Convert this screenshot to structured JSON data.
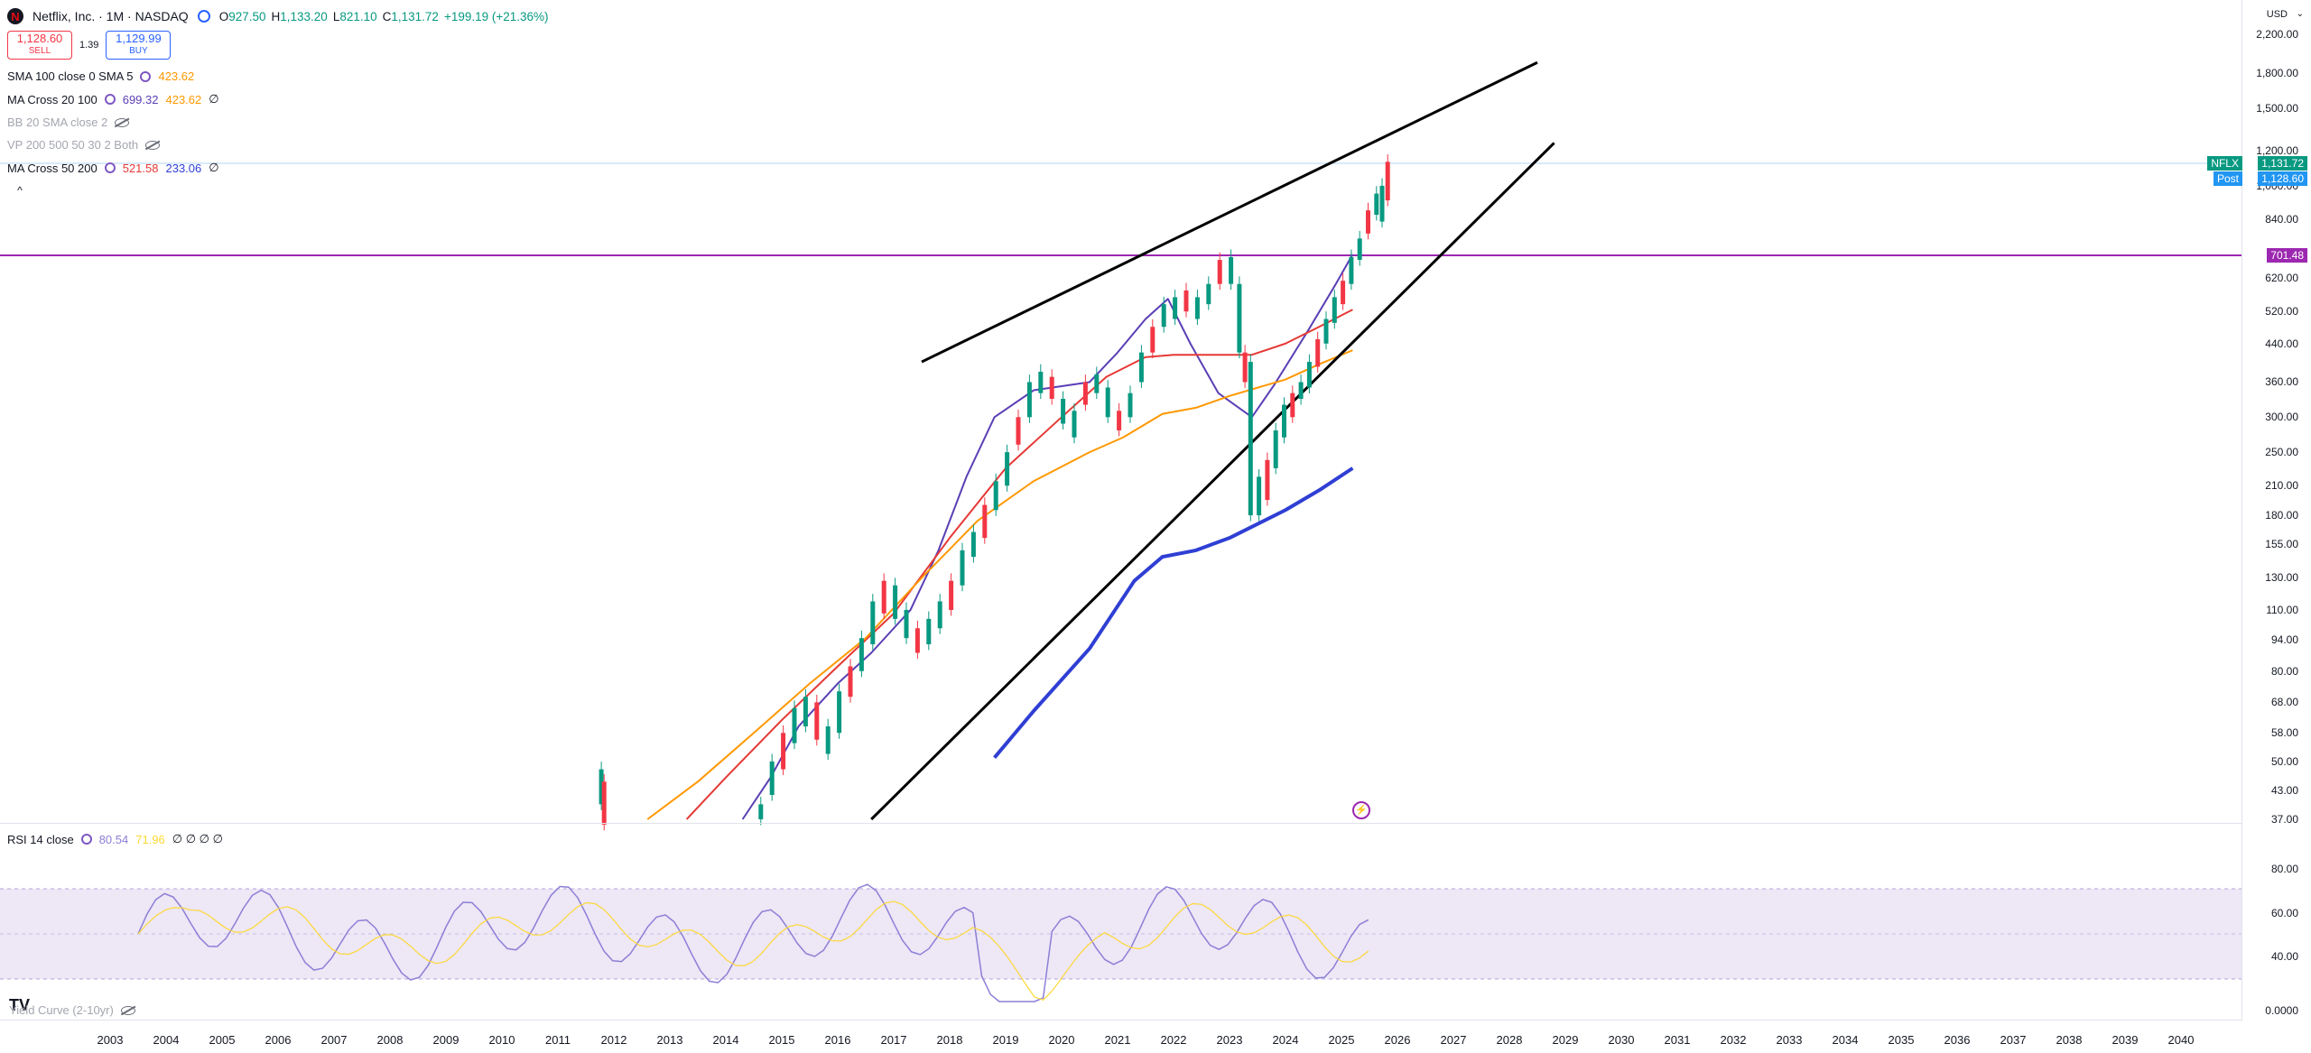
{
  "header": {
    "symbol_title": "Netflix, Inc. · 1M · NASDAQ",
    "logo_letter": "N",
    "ohlc": [
      {
        "key": "O",
        "value": "927.50"
      },
      {
        "key": "H",
        "value": "1,133.20"
      },
      {
        "key": "L",
        "value": "821.10"
      },
      {
        "key": "C",
        "value": "1,131.72"
      },
      {
        "key": "",
        "value": "+199.19 (+21.36%)"
      }
    ]
  },
  "trade": {
    "sell_price": "1,128.60",
    "sell_label": "SELL",
    "spread": "1.39",
    "buy_price": "1,129.99",
    "buy_label": "BUY"
  },
  "indicators": {
    "sma100": {
      "label": "SMA 100 close 0 SMA 5",
      "v1": "423.62"
    },
    "macross20": {
      "label": "MA Cross 20 100",
      "v1": "699.32",
      "v2": "423.62",
      "v3": "∅"
    },
    "bb": {
      "label": "BB 20 SMA close 2"
    },
    "vp": {
      "label": "VP 200 500 50 30 2 Both"
    },
    "macross50": {
      "label": "MA Cross 50 200",
      "v1": "521.58",
      "v2": "233.06",
      "v3": "∅"
    },
    "collapse_glyph": "^"
  },
  "rsi": {
    "label": "RSI 14 close",
    "v1": "80.54",
    "v2": "71.96",
    "rest": "∅ ∅ ∅ ∅"
  },
  "yield_curve": {
    "label": "Yield Curve (2-10yr)"
  },
  "price_axis": {
    "currency": "USD",
    "caret": "⌄",
    "labels": [
      "2,200.00",
      "1,800.00",
      "1,500.00",
      "1,200.00",
      "1,000.00",
      "840.00",
      "620.00",
      "520.00",
      "440.00",
      "360.00",
      "300.00",
      "250.00",
      "210.00",
      "180.00",
      "155.00",
      "130.00",
      "110.00",
      "94.00",
      "80.00",
      "68.00",
      "58.00",
      "50.00",
      "43.00",
      "37.00"
    ],
    "rsi_labels": [
      "80.00",
      "60.00",
      "40.00",
      "0.0000"
    ],
    "tags": {
      "symbol": "NFLX",
      "last": "1,131.72",
      "post_label": "Post",
      "post": "1,128.60",
      "level": "701.48"
    }
  },
  "time_axis": {
    "labels": [
      "2003",
      "2004",
      "2005",
      "2006",
      "2007",
      "2008",
      "2009",
      "2010",
      "2011",
      "2012",
      "2013",
      "2014",
      "2015",
      "2016",
      "2017",
      "2018",
      "2019",
      "2020",
      "2021",
      "2022",
      "2023",
      "2024",
      "2025",
      "2026",
      "2027",
      "2028",
      "2029",
      "2030",
      "2031",
      "2032",
      "2033",
      "2034",
      "2035",
      "2036",
      "2037",
      "2038",
      "2039",
      "2040"
    ]
  },
  "colors": {
    "up": "#089981",
    "down": "#f23645",
    "purple_line": "#9c27b0",
    "ma_fast": "#5b3fb5",
    "ma_red": "#e53935",
    "ma_orange": "#ff9800",
    "ma_blue": "#2f3fd4",
    "rsi_line": "#8c7fd6",
    "rsi_ma": "#fdd835",
    "rsi_band": "#ede7f6"
  }
}
